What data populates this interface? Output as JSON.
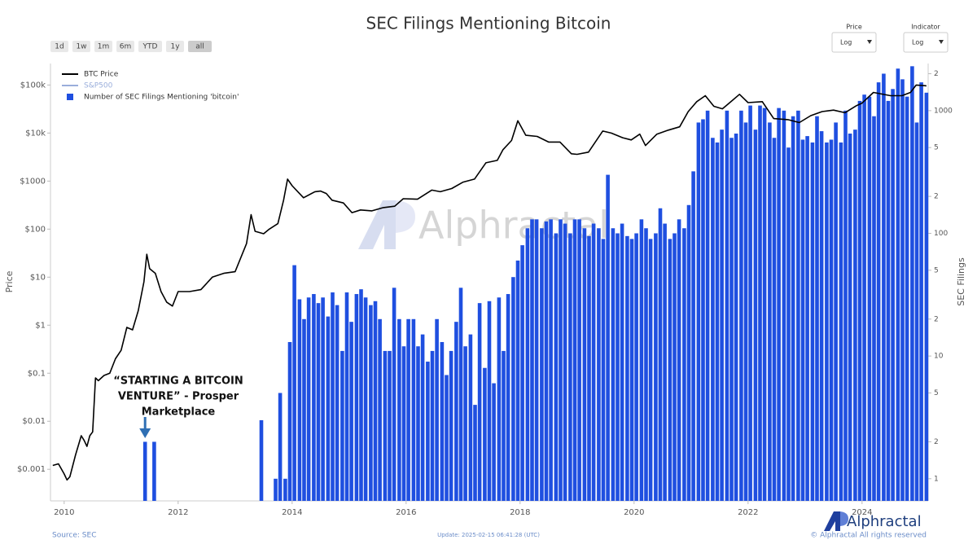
{
  "ui": {
    "range_buttons": [
      "1d",
      "1w",
      "1m",
      "6m",
      "YTD",
      "1y",
      "all"
    ],
    "active_button": 6,
    "selectors": [
      {
        "label": "Price",
        "value": "Log"
      },
      {
        "label": "Indicator",
        "value": "Log"
      }
    ],
    "watermark": "Alphractal",
    "logo": "Alphractal",
    "source": "Source: SEC",
    "update": "Update: 2025-02-15 06:41:28 (UTC)",
    "copyright": "© Alphractal All rights reserved"
  },
  "chart_data": {
    "type": "combo",
    "title": "SEC Filings Mentioning Bitcoin",
    "ylabel": "Price",
    "y2label": "SEC Filings",
    "annotation": {
      "lines": [
        "“STARTING A BITCOIN",
        "VENTURE” - Prosper",
        "Marketplace"
      ],
      "x": 2011.42,
      "color": "#2f6fb4"
    },
    "xlim": [
      2009.76,
      2025.16
    ],
    "xticks": [
      2010,
      2012,
      2014,
      2016,
      2018,
      2020,
      2022,
      2024
    ],
    "ylim": [
      0.00022,
      280000
    ],
    "ylog": true,
    "yticks": [
      {
        "value": 0.001,
        "label": "$0.001"
      },
      {
        "value": 0.01,
        "label": "$0.01"
      },
      {
        "value": 0.1,
        "label": "$0.1"
      },
      {
        "value": 1,
        "label": "$1"
      },
      {
        "value": 10,
        "label": "$10"
      },
      {
        "value": 100,
        "label": "$100"
      },
      {
        "value": 1000,
        "label": "$1000"
      },
      {
        "value": 10000,
        "label": "$10k"
      },
      {
        "value": 100000,
        "label": "$100k"
      }
    ],
    "y2lim": [
      0.66,
      2420
    ],
    "y2log": true,
    "y2ticks": [
      1,
      {
        "value": 2,
        "label": "2"
      },
      {
        "value": 5,
        "label": "5"
      },
      10,
      {
        "value": 20,
        "label": "2"
      },
      {
        "value": 50,
        "label": "5"
      },
      100,
      {
        "value": 200,
        "label": "2"
      },
      {
        "value": 500,
        "label": "5"
      },
      1000,
      {
        "value": 2000,
        "label": "2"
      }
    ],
    "legend": "top-left",
    "series": [
      {
        "name": "BTC Price",
        "type": "line",
        "color": "#000000",
        "x": [
          2009.8,
          2009.9,
          2010.0,
          2010.05,
          2010.1,
          2010.2,
          2010.3,
          2010.35,
          2010.4,
          2010.45,
          2010.5,
          2010.55,
          2010.6,
          2010.7,
          2010.8,
          2010.9,
          2011.0,
          2011.1,
          2011.2,
          2011.3,
          2011.4,
          2011.45,
          2011.5,
          2011.6,
          2011.7,
          2011.8,
          2011.9,
          2012.0,
          2012.2,
          2012.4,
          2012.6,
          2012.8,
          2013.0,
          2013.2,
          2013.28,
          2013.35,
          2013.5,
          2013.6,
          2013.75,
          2013.85,
          2013.92,
          2014.0,
          2014.1,
          2014.2,
          2014.4,
          2014.5,
          2014.6,
          2014.7,
          2014.9,
          2015.05,
          2015.2,
          2015.4,
          2015.6,
          2015.8,
          2015.95,
          2016.2,
          2016.45,
          2016.6,
          2016.8,
          2017.0,
          2017.2,
          2017.4,
          2017.6,
          2017.7,
          2017.85,
          2017.96,
          2018.1,
          2018.3,
          2018.5,
          2018.7,
          2018.9,
          2019.0,
          2019.2,
          2019.45,
          2019.6,
          2019.8,
          2019.95,
          2020.1,
          2020.2,
          2020.4,
          2020.6,
          2020.8,
          2020.95,
          2021.1,
          2021.25,
          2021.4,
          2021.55,
          2021.7,
          2021.85,
          2022.0,
          2022.25,
          2022.45,
          2022.7,
          2022.9,
          2023.1,
          2023.3,
          2023.5,
          2023.7,
          2023.9,
          2024.0,
          2024.2,
          2024.5,
          2024.7,
          2024.85,
          2024.95,
          2025.1,
          2025.13
        ],
        "values": [
          0.0012,
          0.0013,
          0.0008,
          0.0006,
          0.0007,
          0.002,
          0.005,
          0.004,
          0.003,
          0.005,
          0.006,
          0.08,
          0.07,
          0.09,
          0.1,
          0.2,
          0.3,
          0.9,
          0.8,
          2,
          8,
          30,
          15,
          12,
          5,
          3,
          2.5,
          5,
          5,
          5.5,
          10,
          12,
          13,
          50,
          200,
          90,
          80,
          100,
          130,
          400,
          1100,
          800,
          600,
          450,
          600,
          620,
          550,
          400,
          350,
          220,
          250,
          240,
          280,
          300,
          430,
          420,
          650,
          600,
          700,
          950,
          1100,
          2400,
          2700,
          4500,
          7000,
          18000,
          9000,
          8500,
          6500,
          6500,
          3700,
          3600,
          4000,
          11000,
          10000,
          8000,
          7200,
          9500,
          5500,
          9500,
          11500,
          13500,
          28000,
          45000,
          60000,
          36000,
          32000,
          45000,
          64000,
          43000,
          45000,
          20000,
          19000,
          16500,
          23000,
          28000,
          30000,
          26500,
          37000,
          42000,
          70000,
          60000,
          60000,
          70000,
          100000,
          97000,
          96000
        ]
      },
      {
        "name": "S&P500",
        "type": "line",
        "color": "#9aaedb",
        "visible": false,
        "x": [],
        "values": []
      },
      {
        "name": "Number of SEC Filings Mentioning 'bitcoin'",
        "type": "bar",
        "axis": "y2",
        "color": "#1f4fe0",
        "x": [
          2011.42,
          2011.58,
          2013.46,
          2013.54,
          2013.63,
          2013.71,
          2013.79,
          2013.88,
          2013.96,
          2014.04,
          2014.13,
          2014.21,
          2014.29,
          2014.38,
          2014.46,
          2014.54,
          2014.63,
          2014.71,
          2014.79,
          2014.88,
          2014.96,
          2015.04,
          2015.13,
          2015.21,
          2015.29,
          2015.38,
          2015.46,
          2015.54,
          2015.63,
          2015.71,
          2015.79,
          2015.88,
          2015.96,
          2016.04,
          2016.13,
          2016.21,
          2016.29,
          2016.38,
          2016.46,
          2016.54,
          2016.63,
          2016.71,
          2016.79,
          2016.88,
          2016.96,
          2017.04,
          2017.13,
          2017.21,
          2017.29,
          2017.38,
          2017.46,
          2017.54,
          2017.63,
          2017.71,
          2017.79,
          2017.88,
          2017.96,
          2018.04,
          2018.13,
          2018.21,
          2018.29,
          2018.38,
          2018.46,
          2018.54,
          2018.63,
          2018.71,
          2018.79,
          2018.88,
          2018.96,
          2019.04,
          2019.13,
          2019.21,
          2019.29,
          2019.38,
          2019.46,
          2019.54,
          2019.63,
          2019.71,
          2019.79,
          2019.88,
          2019.96,
          2020.04,
          2020.13,
          2020.21,
          2020.29,
          2020.38,
          2020.46,
          2020.54,
          2020.63,
          2020.71,
          2020.79,
          2020.88,
          2020.96,
          2021.04,
          2021.13,
          2021.21,
          2021.29,
          2021.38,
          2021.46,
          2021.54,
          2021.63,
          2021.71,
          2021.79,
          2021.88,
          2021.96,
          2022.04,
          2022.13,
          2022.21,
          2022.29,
          2022.38,
          2022.46,
          2022.54,
          2022.63,
          2022.71,
          2022.79,
          2022.88,
          2022.96,
          2023.04,
          2023.13,
          2023.21,
          2023.29,
          2023.38,
          2023.46,
          2023.54,
          2023.63,
          2023.71,
          2023.79,
          2023.88,
          2023.96,
          2024.04,
          2024.13,
          2024.21,
          2024.29,
          2024.38,
          2024.46,
          2024.54,
          2024.63,
          2024.71,
          2024.79,
          2024.88,
          2024.96,
          2025.04,
          2025.13
        ],
        "values": [
          2,
          2,
          3,
          null,
          null,
          1,
          5,
          1,
          13,
          55,
          29,
          20,
          30,
          32,
          27,
          30,
          21,
          33,
          26,
          11,
          33,
          19,
          32,
          35,
          30,
          26,
          28,
          20,
          11,
          11,
          36,
          20,
          12,
          20,
          20,
          12,
          15,
          9,
          11,
          20,
          13,
          7,
          11,
          19,
          36,
          12,
          15,
          4,
          27,
          8,
          28,
          6,
          30,
          11,
          32,
          44,
          60,
          80,
          110,
          130,
          130,
          110,
          125,
          130,
          100,
          130,
          120,
          100,
          130,
          130,
          110,
          95,
          120,
          110,
          90,
          300,
          110,
          100,
          120,
          95,
          90,
          100,
          130,
          110,
          90,
          100,
          160,
          120,
          90,
          100,
          130,
          110,
          170,
          320,
          800,
          850,
          1000,
          600,
          550,
          700,
          1000,
          600,
          650,
          1000,
          800,
          1100,
          700,
          1100,
          1050,
          800,
          600,
          1050,
          1000,
          500,
          900,
          1000,
          580,
          620,
          550,
          900,
          680,
          550,
          580,
          800,
          550,
          1000,
          650,
          700,
          1200,
          1350,
          1300,
          900,
          1700,
          2000,
          1200,
          1500,
          2200,
          1800,
          1300,
          2300,
          800,
          1700,
          1400
        ]
      }
    ]
  }
}
